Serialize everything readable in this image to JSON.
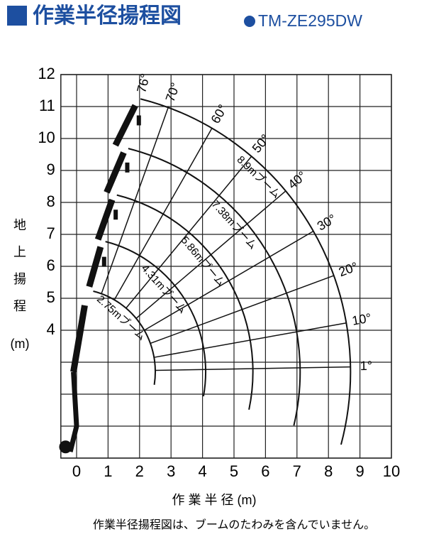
{
  "chart_data": {
    "type": "working-range",
    "title": "作業半径揚程図",
    "model": "TM-ZE295DW",
    "ylabel": [
      "地",
      "上",
      "揚",
      "程",
      "(m)"
    ],
    "xlabel": "作 業 半 径 (m)",
    "footnote": "作業半径揚程図は、ブームのたわみを含んでいません。",
    "xlim": [
      -0.5,
      10
    ],
    "ylim": [
      0,
      12
    ],
    "xticks": [
      0,
      1,
      2,
      3,
      4,
      5,
      6,
      7,
      8,
      9,
      10
    ],
    "yticks": [
      4,
      5,
      6,
      7,
      8,
      9,
      10,
      11,
      12
    ],
    "booms": [
      "2.75mブーム",
      "4.31mブーム",
      "5.86mブーム",
      "7.38mブーム",
      "8.9mブーム"
    ],
    "angles": [
      "76°",
      "70°",
      "60°",
      "50°",
      "40°",
      "30°",
      "20°",
      "10°",
      "1°"
    ],
    "color": "#1d4fa0"
  }
}
